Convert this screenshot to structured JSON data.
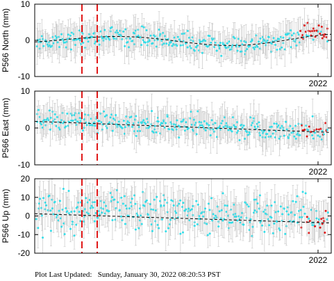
{
  "footer": {
    "label": "Plot Last Updated:",
    "timestamp": "Sunday, January 30, 2022 08:20:53 PST"
  },
  "colors": {
    "data_point": "#33dde8",
    "recent_point": "#e01818",
    "error_bar": "#c8c8c8",
    "trend": "#000000",
    "event_line": "#e01818"
  },
  "chart_data": [
    {
      "type": "scatter",
      "ylabel": "P566 North (mm)",
      "ylim": [
        -10,
        10
      ],
      "yticks": [
        "10",
        "0",
        "-10"
      ],
      "year_label": "2022",
      "grid": false,
      "events": [
        "event-1",
        "event-2"
      ],
      "trend_shape": "sinusoidal-dashed",
      "series": [
        {
          "role": "daily-positions",
          "color": "cyan",
          "mean": 0.5,
          "spread": 1.2
        },
        {
          "role": "recent-positions",
          "color": "red",
          "mean": 1.8,
          "spread": 1.2
        }
      ]
    },
    {
      "type": "scatter",
      "ylabel": "P566 East (mm)",
      "ylim": [
        -10,
        10
      ],
      "yticks": [
        "10",
        "0",
        "-10"
      ],
      "year_label": "2022",
      "grid": false,
      "events": [
        "event-1",
        "event-2"
      ],
      "trend_shape": "linear-dashed",
      "series": [
        {
          "role": "daily-positions",
          "color": "cyan",
          "mean": -0.5,
          "spread": 1.5
        },
        {
          "role": "recent-positions",
          "color": "red",
          "mean": -0.8,
          "spread": 1.2
        }
      ]
    },
    {
      "type": "scatter",
      "ylabel": "P566 Up (mm)",
      "ylim": [
        -20,
        20
      ],
      "yticks": [
        "20",
        "10",
        "0",
        "-10",
        "-20"
      ],
      "year_label": "2022",
      "grid": false,
      "events": [
        "event-1",
        "event-2"
      ],
      "trend_shape": "linear-dashed",
      "series": [
        {
          "role": "daily-positions",
          "color": "cyan",
          "mean": 3.0,
          "spread": 5.0
        },
        {
          "role": "recent-positions",
          "color": "red",
          "mean": -4.0,
          "spread": 3.0
        }
      ]
    }
  ]
}
